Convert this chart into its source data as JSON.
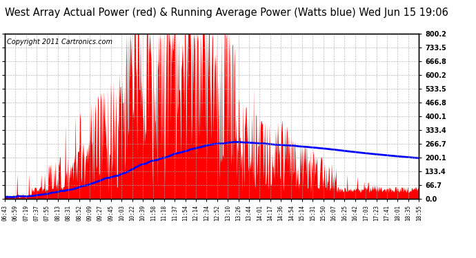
{
  "title": "West Array Actual Power (red) & Running Average Power (Watts blue) Wed Jun 15 19:06",
  "copyright": "Copyright 2011 Cartronics.com",
  "ylim": [
    0.0,
    800.2
  ],
  "yticks": [
    0.0,
    66.7,
    133.4,
    200.1,
    266.7,
    333.4,
    400.1,
    466.8,
    533.5,
    600.2,
    666.8,
    733.5,
    800.2
  ],
  "xtick_labels": [
    "06:43",
    "06:59",
    "07:19",
    "07:37",
    "07:55",
    "08:13",
    "08:31",
    "08:52",
    "09:09",
    "09:27",
    "09:45",
    "10:03",
    "10:22",
    "10:39",
    "11:58",
    "11:18",
    "11:37",
    "11:54",
    "12:14",
    "12:34",
    "12:52",
    "13:10",
    "13:26",
    "13:44",
    "14:01",
    "14:17",
    "14:36",
    "14:54",
    "15:14",
    "15:31",
    "15:50",
    "16:07",
    "16:25",
    "16:42",
    "17:03",
    "17:23",
    "17:41",
    "18:01",
    "18:35",
    "18:55"
  ],
  "bar_color": "#FF0000",
  "line_color": "#0000FF",
  "background_color": "#FFFFFF",
  "grid_color": "#AAAAAA",
  "title_fontsize": 10.5,
  "copyright_fontsize": 7,
  "n_points": 740,
  "ra_seed": 42,
  "power_seed": 123
}
